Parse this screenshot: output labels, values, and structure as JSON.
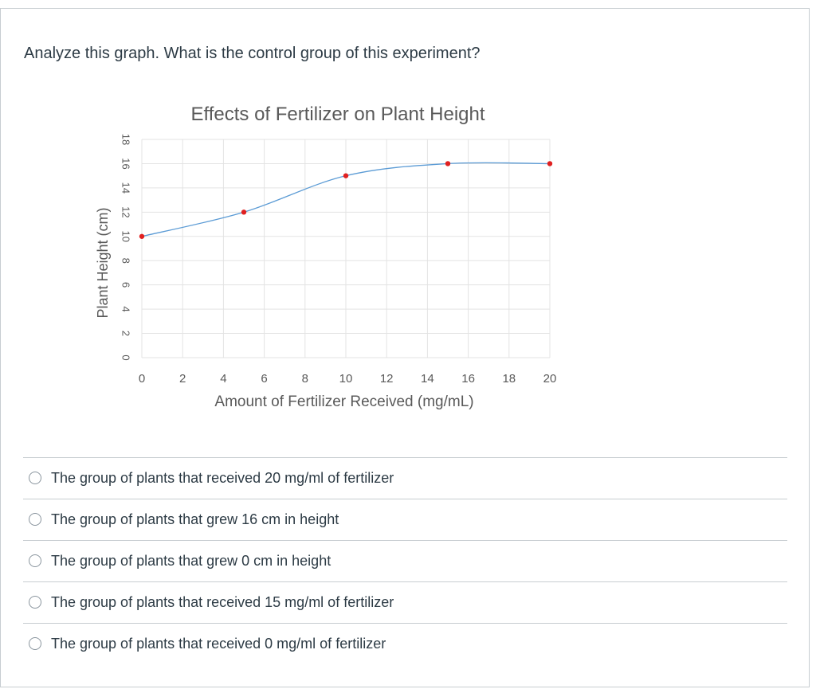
{
  "question": {
    "text": "Analyze this graph.  What is the control group of this experiment?"
  },
  "chart_data": {
    "type": "scatter",
    "title": "Effects of Fertilizer on Plant Height",
    "xlabel": "Amount of Fertilizer Received (mg/mL)",
    "ylabel": "Plant Height (cm)",
    "xlim": [
      0,
      20
    ],
    "ylim": [
      0,
      18
    ],
    "xticks": [
      0,
      2,
      4,
      6,
      8,
      10,
      12,
      14,
      16,
      18,
      20
    ],
    "yticks": [
      0,
      2,
      4,
      6,
      8,
      10,
      12,
      14,
      16,
      18
    ],
    "grid": true,
    "smoothed_line": true,
    "series": [
      {
        "x": [
          0,
          5,
          10,
          15,
          20
        ],
        "y": [
          10,
          12,
          15,
          16,
          16
        ]
      }
    ],
    "colors": {
      "line": "#5b9bd5",
      "marker": "#e02020",
      "grid": "#e3e3e3"
    }
  },
  "answers": [
    {
      "label": "The group of plants that received 20 mg/ml of fertilizer"
    },
    {
      "label": "The group of plants that grew 16 cm in height"
    },
    {
      "label": "The group of plants that grew 0 cm in height"
    },
    {
      "label": "The group of plants that received 15 mg/ml of fertilizer"
    },
    {
      "label": "The group of plants that received 0 mg/ml of fertilizer"
    }
  ]
}
